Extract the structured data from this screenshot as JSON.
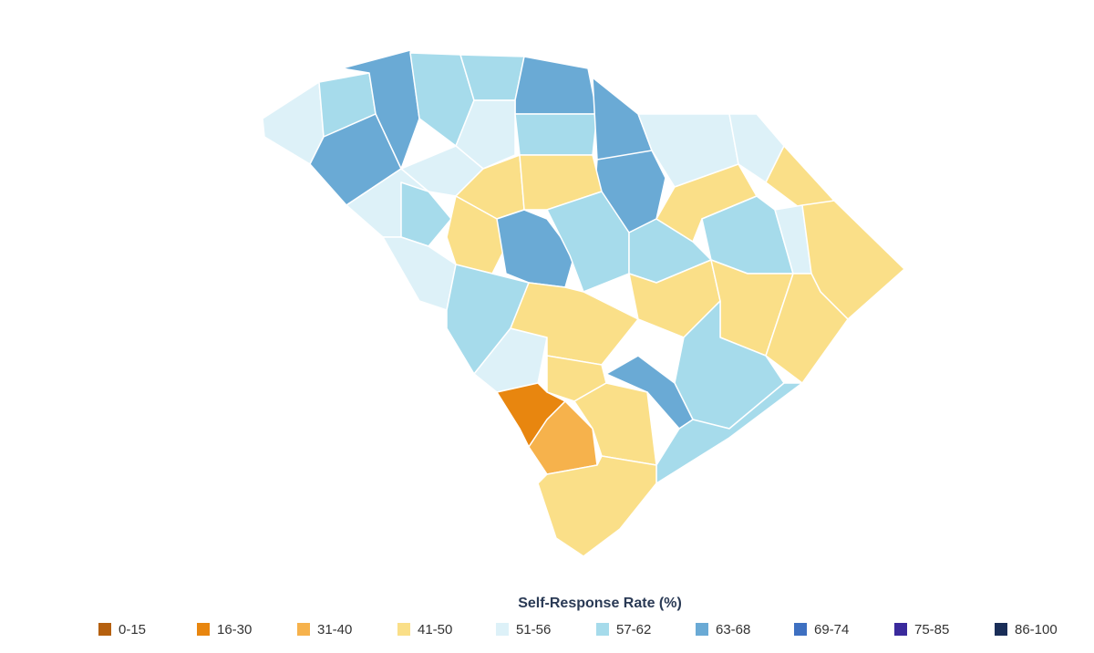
{
  "legend": {
    "title": "Self-Response Rate (%)",
    "items": [
      {
        "label": "0-15",
        "color": "#b5600f"
      },
      {
        "label": "16-30",
        "color": "#e8860f"
      },
      {
        "label": "31-40",
        "color": "#f6b24c"
      },
      {
        "label": "41-50",
        "color": "#fadf88"
      },
      {
        "label": "51-56",
        "color": "#ddf1f8"
      },
      {
        "label": "57-62",
        "color": "#a6dbeb"
      },
      {
        "label": "63-68",
        "color": "#6aaad5"
      },
      {
        "label": "69-74",
        "color": "#3e70c1"
      },
      {
        "label": "75-85",
        "color": "#3a2a9c"
      },
      {
        "label": "86-100",
        "color": "#1a2e58"
      }
    ]
  }
}
